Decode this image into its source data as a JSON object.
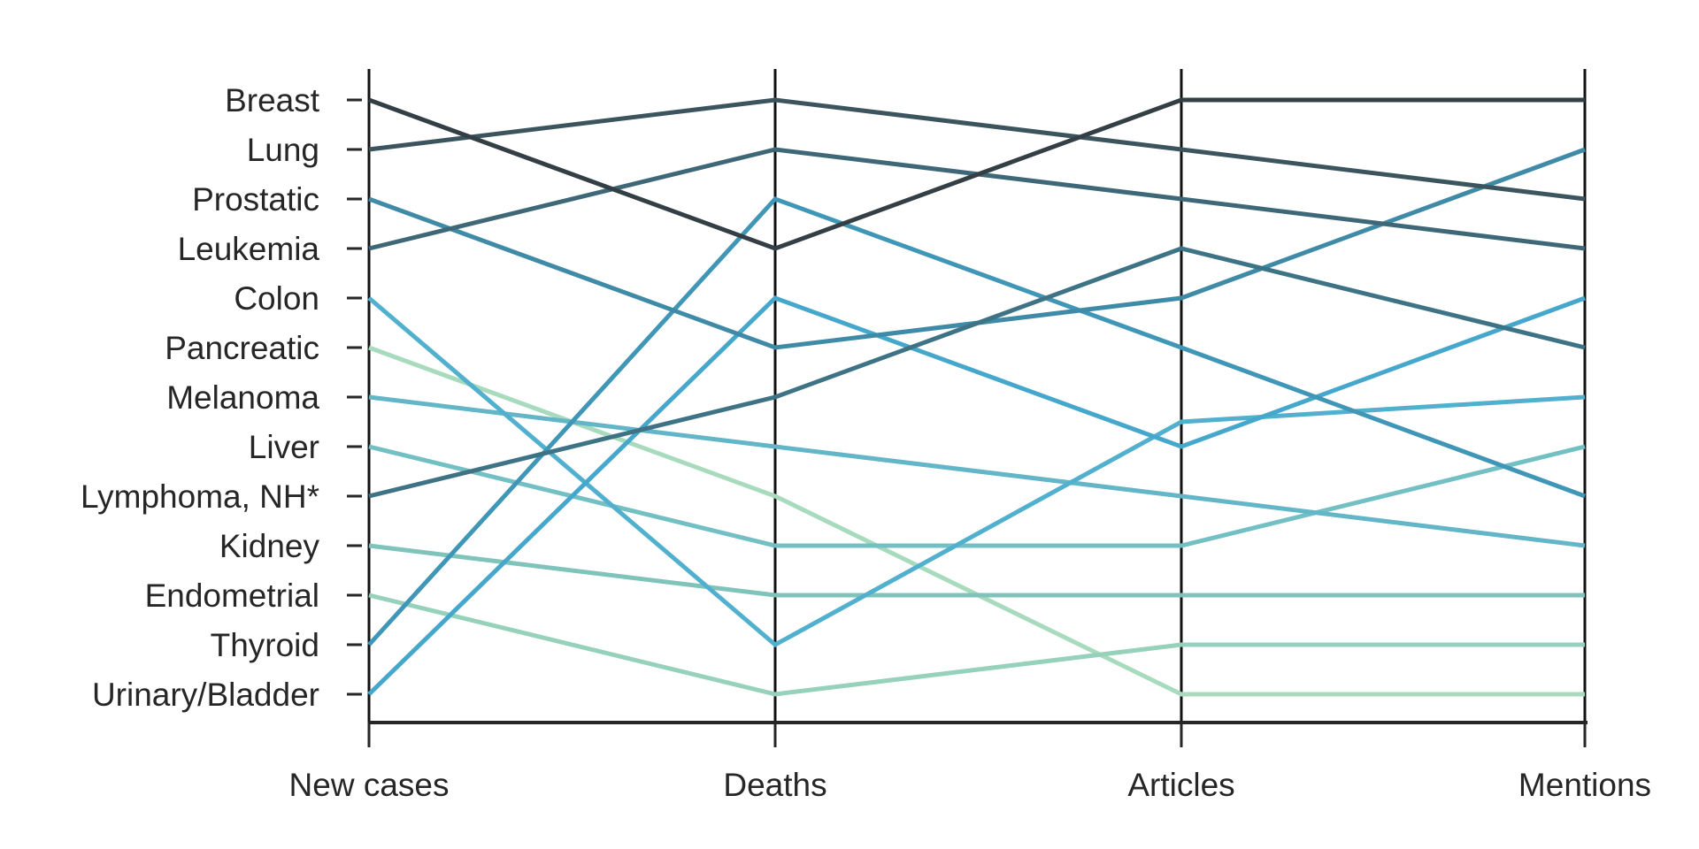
{
  "chart_data": {
    "type": "line",
    "title": "",
    "xlabel": "",
    "ylabel": "",
    "x": [
      "New cases",
      "Deaths",
      "Articles",
      "Mentions"
    ],
    "ranks": [
      "Breast",
      "Lung",
      "Prostatic",
      "Leukemia",
      "Colon",
      "Pancreatic",
      "Melanoma",
      "Liver",
      "Lymphoma, NH*",
      "Kidney",
      "Endometrial",
      "Thyroid",
      "Urinary/Bladder"
    ],
    "ylim": [
      1,
      13
    ],
    "y_inverted": true,
    "grid": false,
    "legend": "none",
    "series": [
      {
        "values": [
          1,
          4,
          1,
          1
        ],
        "color": "#343f45"
      },
      {
        "values": [
          2,
          1,
          2,
          3
        ],
        "color": "#3b545e"
      },
      {
        "values": [
          4,
          2,
          3,
          4
        ],
        "color": "#3e6878"
      },
      {
        "values": [
          9,
          7,
          4,
          6
        ],
        "color": "#3e7386"
      },
      {
        "values": [
          3,
          6,
          5,
          2
        ],
        "color": "#3f8aa6"
      },
      {
        "values": [
          12,
          3,
          6,
          9
        ],
        "color": "#4096b6"
      },
      {
        "values": [
          13,
          5,
          8,
          5
        ],
        "color": "#46a7cd"
      },
      {
        "values": [
          5,
          12,
          7.5,
          7
        ],
        "color": "#52b0cf"
      },
      {
        "values": [
          7,
          8,
          9,
          10
        ],
        "color": "#63b5c8"
      },
      {
        "values": [
          8,
          10,
          10,
          8
        ],
        "color": "#72bfc4"
      },
      {
        "values": [
          10,
          11,
          11,
          11
        ],
        "color": "#7fc3bb"
      },
      {
        "values": [
          11,
          13,
          12,
          12
        ],
        "color": "#96d2bb"
      },
      {
        "values": [
          6,
          9,
          13,
          13
        ],
        "color": "#a8dbbd"
      }
    ]
  }
}
